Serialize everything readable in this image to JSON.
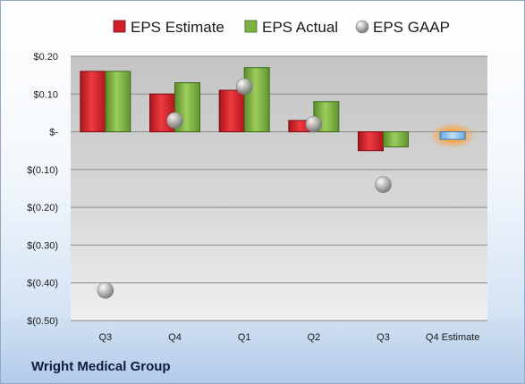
{
  "company": "Wright Medical Group",
  "chart_data": {
    "type": "bar",
    "categories": [
      "Q3",
      "Q4",
      "Q1",
      "Q2",
      "Q3",
      "Q4 Estimate"
    ],
    "series": [
      {
        "name": "EPS Estimate",
        "kind": "bar",
        "color": "#d0202a",
        "values": [
          0.16,
          0.1,
          0.11,
          0.03,
          -0.05,
          null
        ]
      },
      {
        "name": "EPS Actual",
        "kind": "bar",
        "color": "#7cb342",
        "values": [
          0.16,
          0.13,
          0.17,
          0.08,
          -0.04,
          null
        ]
      },
      {
        "name": "EPS GAAP",
        "kind": "scatter",
        "color": "#a8a8a8",
        "values": [
          -0.42,
          0.03,
          0.12,
          0.02,
          -0.14,
          null
        ]
      },
      {
        "name": "",
        "kind": "bar",
        "color": "#8ec3f0",
        "values": [
          null,
          null,
          null,
          null,
          null,
          -0.02
        ]
      }
    ],
    "yticks": [
      0.2,
      0.1,
      0,
      -0.1,
      -0.2,
      -0.3,
      -0.4,
      -0.5
    ],
    "yticklabels": [
      "$0.20",
      "$0.10",
      "$-",
      "$(0.10)",
      "$(0.20)",
      "$(0.30)",
      "$(0.40)",
      "$(0.50)"
    ],
    "ylim": [
      -0.5,
      0.2
    ],
    "grid": true,
    "legend": "top"
  }
}
